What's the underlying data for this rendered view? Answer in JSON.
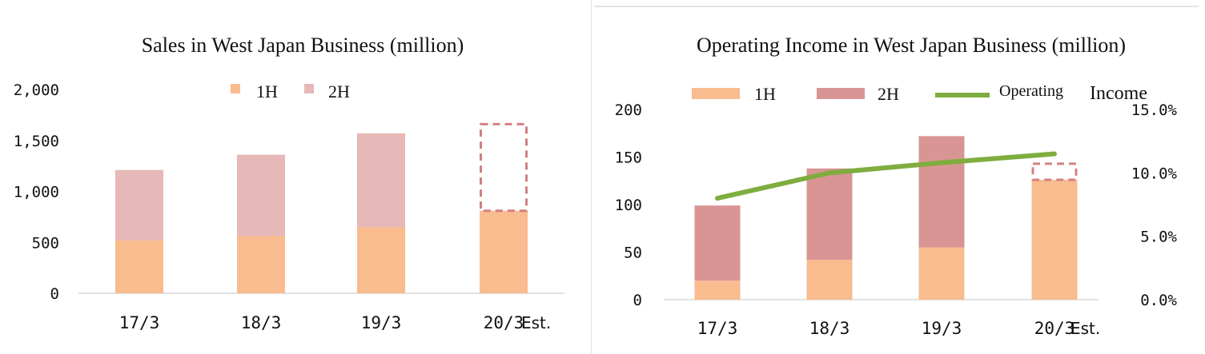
{
  "colors": {
    "first_half_left": "#f8bc8f",
    "second_half_left": "#e6b8b7",
    "first_half_right": "#f8bc8f",
    "second_half_right": "#d99594",
    "line": "#7fad3f",
    "estimate_box": "#d48080"
  },
  "chart_data": [
    {
      "type": "bar",
      "stacked": true,
      "title": "Sales in West Japan Business (million)",
      "categories": [
        "17/3",
        "18/3",
        "19/3",
        "20/3"
      ],
      "category_suffix": "Est.",
      "y_ticks": [
        "0",
        "500",
        "1,000",
        "1,500",
        "2,000"
      ],
      "ylim": [
        0,
        2000
      ],
      "legend": {
        "placement": "top-center",
        "items": [
          "1H",
          "2H"
        ]
      },
      "series": [
        {
          "name": "1H",
          "values": [
            520,
            560,
            650,
            810
          ]
        },
        {
          "name": "2H",
          "values": [
            690,
            800,
            920,
            850
          ]
        }
      ],
      "estimate_outline": {
        "category": "20/3",
        "segment": "2H"
      }
    },
    {
      "type": "bar",
      "stacked": true,
      "title": "Operating Income in West Japan Business (million)",
      "categories": [
        "17/3",
        "18/3",
        "19/3",
        "20/3"
      ],
      "category_suffix": "Est.",
      "y_ticks": [
        "0",
        "50",
        "100",
        "150",
        "200"
      ],
      "ylim": [
        0,
        200
      ],
      "y2_ticks": [
        "0.0%",
        "5.0%",
        "10.0%",
        "15.0%"
      ],
      "y2lim": [
        0,
        15
      ],
      "legend": {
        "placement": "top",
        "items": [
          "1H",
          "2H",
          "Operating",
          "Income"
        ]
      },
      "series": [
        {
          "name": "1H",
          "values": [
            20,
            42,
            55,
            126
          ]
        },
        {
          "name": "2H",
          "values": [
            79,
            96,
            117,
            17
          ]
        }
      ],
      "line": {
        "values": [
          8.0,
          10.0,
          10.8,
          11.5
        ]
      },
      "estimate_outline": {
        "category": "20/3",
        "segment": "2H"
      }
    }
  ]
}
